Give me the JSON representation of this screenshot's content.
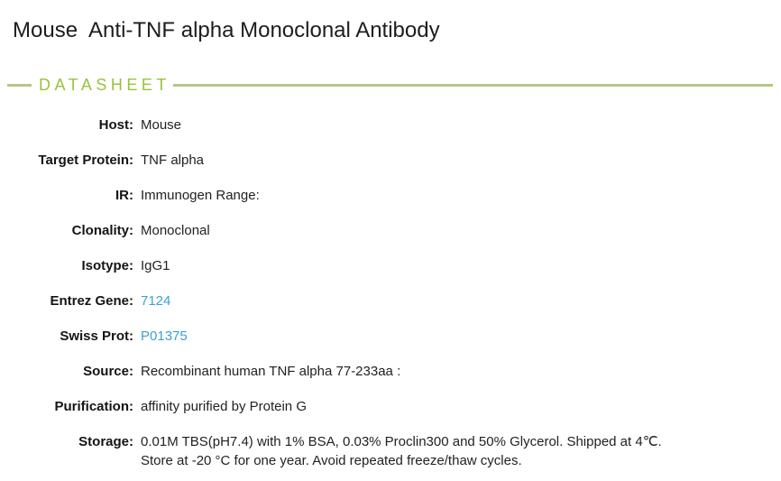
{
  "page": {
    "title": "Mouse  Anti-TNF alpha Monoclonal Antibody"
  },
  "section": {
    "heading": "DATASHEET"
  },
  "colors": {
    "heading_green": "#97c33d",
    "divider_green": "#b6c784",
    "link_blue": "#3f9fd3",
    "text_dark": "#1d1d1d"
  },
  "rows": [
    {
      "label": "Host:",
      "value": "Mouse"
    },
    {
      "label": "Target Protein:",
      "value": "TNF alpha"
    },
    {
      "label": "IR:",
      "value": "Immunogen Range:"
    },
    {
      "label": "Clonality:",
      "value": "Monoclonal"
    },
    {
      "label": "Isotype:",
      "value": "IgG1"
    },
    {
      "label": "Entrez Gene:",
      "value": "7124"
    },
    {
      "label": "Swiss Prot:",
      "value": "P01375"
    },
    {
      "label": "Source:",
      "value": "Recombinant human TNF alpha 77-233aa :"
    },
    {
      "label": "Purification:",
      "value": "affinity purified by Protein G"
    },
    {
      "label": "Storage:",
      "value": "0.01M TBS(pH7.4) with 1% BSA, 0.03% Proclin300 and 50% Glycerol. Shipped at 4℃. Store at -20 °C for one year. Avoid repeated freeze/thaw cycles."
    }
  ]
}
